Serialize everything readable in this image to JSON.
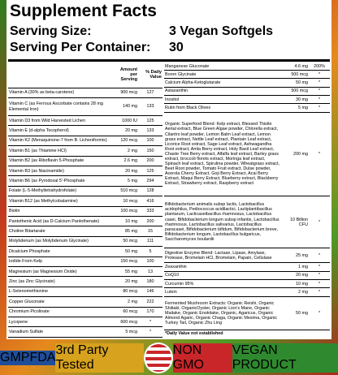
{
  "header": {
    "title": "Supplement Facts",
    "serving_size_label": "Serving Size:",
    "serving_size_value": "3 Vegan Softgels",
    "servings_label": "Serving Per Container:",
    "servings_value": "30"
  },
  "left_table": {
    "columns": [
      "",
      "Amount per Serving",
      "% Daily Value"
    ],
    "rows": [
      [
        "Vitamin A (30% as beta-carotene)",
        "900 mcg",
        127
      ],
      [
        "Vitamin C (as Ferrous Ascorbate contains 28 mg Elemental Iron)",
        "140 mg",
        133
      ],
      [
        "Vitamin D3 from Wild Harvested Lichen",
        "1000 IU",
        125
      ],
      [
        "Vitamin E (d-alpha Tocopherol)",
        "20 mg",
        133
      ],
      [
        "Vitamin K2 (Menaquinone-7 from B. Licheniformis)",
        "120 mcg",
        100
      ],
      [
        "Vitamin B1 (as Thiamine HCl)",
        "2 mg",
        150
      ],
      [
        "Vitamin B2 (as Riboflavin 5-Phosphate",
        "2.6 mg",
        200
      ],
      [
        "Vitamin B3 (as Niacinamide)",
        "20 mg",
        125
      ],
      [
        "Vitamin B6 (as Pyrodoxal 5'-Phosphate",
        "5 mg",
        294
      ],
      [
        "Folate (L-5-Methyltetrahydrofolate)",
        "510 mcg",
        128
      ],
      [
        "Vitamin B12 (as Methylcobalamine)",
        "10 mcg",
        416
      ],
      [
        "Biotin",
        "100 mcg",
        333
      ],
      [
        "Pantothenic Acid (as D-Calcium Pantothenate)",
        "10 mg",
        200
      ],
      [
        "Choline Bitartarate",
        "85 mg",
        15
      ],
      [
        "Molybdenum (as Molybdenum Glycinate)",
        "50 mcg",
        111
      ],
      [
        "Dicalcium Phosphate",
        "50 mg",
        5
      ],
      [
        "Iodide From Kelp",
        "150 mcg",
        100
      ],
      [
        "Magnesium (as Magnesium Oxide)",
        "55 mg",
        13
      ],
      [
        "Zinc (as Zinc Glycinate)",
        "20 mg",
        180
      ],
      [
        "L-Selenomethionine",
        "80 mcg",
        146
      ],
      [
        "Copper Gluconate",
        "2 mg",
        222
      ],
      [
        "Chromium Picolinate",
        "60 mcg",
        170
      ],
      [
        "Lycopene",
        "600 mcg",
        "*"
      ],
      [
        "Vanadium Sulfate",
        "5 mcg",
        "*"
      ]
    ]
  },
  "right_table": {
    "rows": [
      [
        "Manganese Gluconate",
        "4.6 mg",
        "200%"
      ],
      [
        "Boron Glycinate",
        "500 mcg",
        "*"
      ],
      [
        "Calcium Alpha-Ketoglutarate",
        "50 mg",
        "*"
      ],
      [
        "Astaxanthin",
        "500 mcg",
        "*"
      ],
      [
        "Inositol",
        "30 mg",
        "*"
      ],
      [
        "Rutin from Black Olives",
        "5 mg",
        "*"
      ],
      [
        "Organic Superfood Blend: Kelp extract, Blessed Thistle Aerial extract, Blue Green Algae powder, Chlorella extract, Cilantro leaf powder, Lemon Balm Leaf extract, Lemon grass extract, Nettle Leaf extract, Plantain Leaf extract, Licorice Root extract, Sage Leaf extract, Ashwagandha Root extract, Amla Berry extract, Holy Basil Leaf extract, Chaste Tree Berry extract, Alfalfa leaf extract, Barley grass extract, broccoli florets extract, Moringa leaf extract, Spinach leaf extract, Spirulina powder, Wheatgrass extract, Beet Root powder, Tomato Fruit extract, Dulse powder, Acerola Cherry Extract, Goji Berry Extract, Acai Berry Extract, Maqui Berry Extract, Blueberry extract, Blackberry Extract, Strawberry extract, Raspberry extract",
        "200 mg",
        "*"
      ],
      [
        "Bifidobacterium animalis subsp lactis, Lactobacillus acidophilus, Pediococcus acidilactici, Lactiplantibacillus plantarum, Lacticaseibacillus rhamnosus, Lactobacillus casei, Bifidobacterium longum subsp infantis, Lactobacillus rhamnosus, Lactobacillus salivarius, Lactobacillus paracasei, Bifidobacterium bifidum, Bifidobacterium breve, Bifidobacterium longum, Lactobacillus bulgaricus, Saccharomyces boulardii",
        "10 Billion CFU",
        "*"
      ],
      [
        "Digestive Enzyme Blend: Lactase, Lipase, Amylase, Protease, Bromelain HCl, Bromelain, Papain, Cellulase",
        "25 mg",
        "*"
      ],
      [
        "Zeaxanthin",
        "1 mg",
        "*"
      ],
      [
        "CoQ10",
        "20 mg",
        "*"
      ],
      [
        "Curcumin 95%",
        "10 mg",
        "*"
      ],
      [
        "Lutein",
        "2 mg",
        "*"
      ],
      [
        "Fermented Mushroom Extracts: Organic Reishi, Organic Shiitaki, OrganicOyster, Organic Lion's Mane, Organic Maitake, Organic Enokitake, Organic, Agaricus, Organic Almond Agaric, Organic Chaga, Organic Mesima, Organic Turkey Tail, Organic Zhu Ling",
        "50 mg",
        "*"
      ]
    ],
    "footnote": "*Daily Value not established"
  },
  "badges": [
    "GMP",
    "FDA",
    "3rd Party Tested",
    "NON GMO",
    "VEGAN PRODUCT"
  ]
}
